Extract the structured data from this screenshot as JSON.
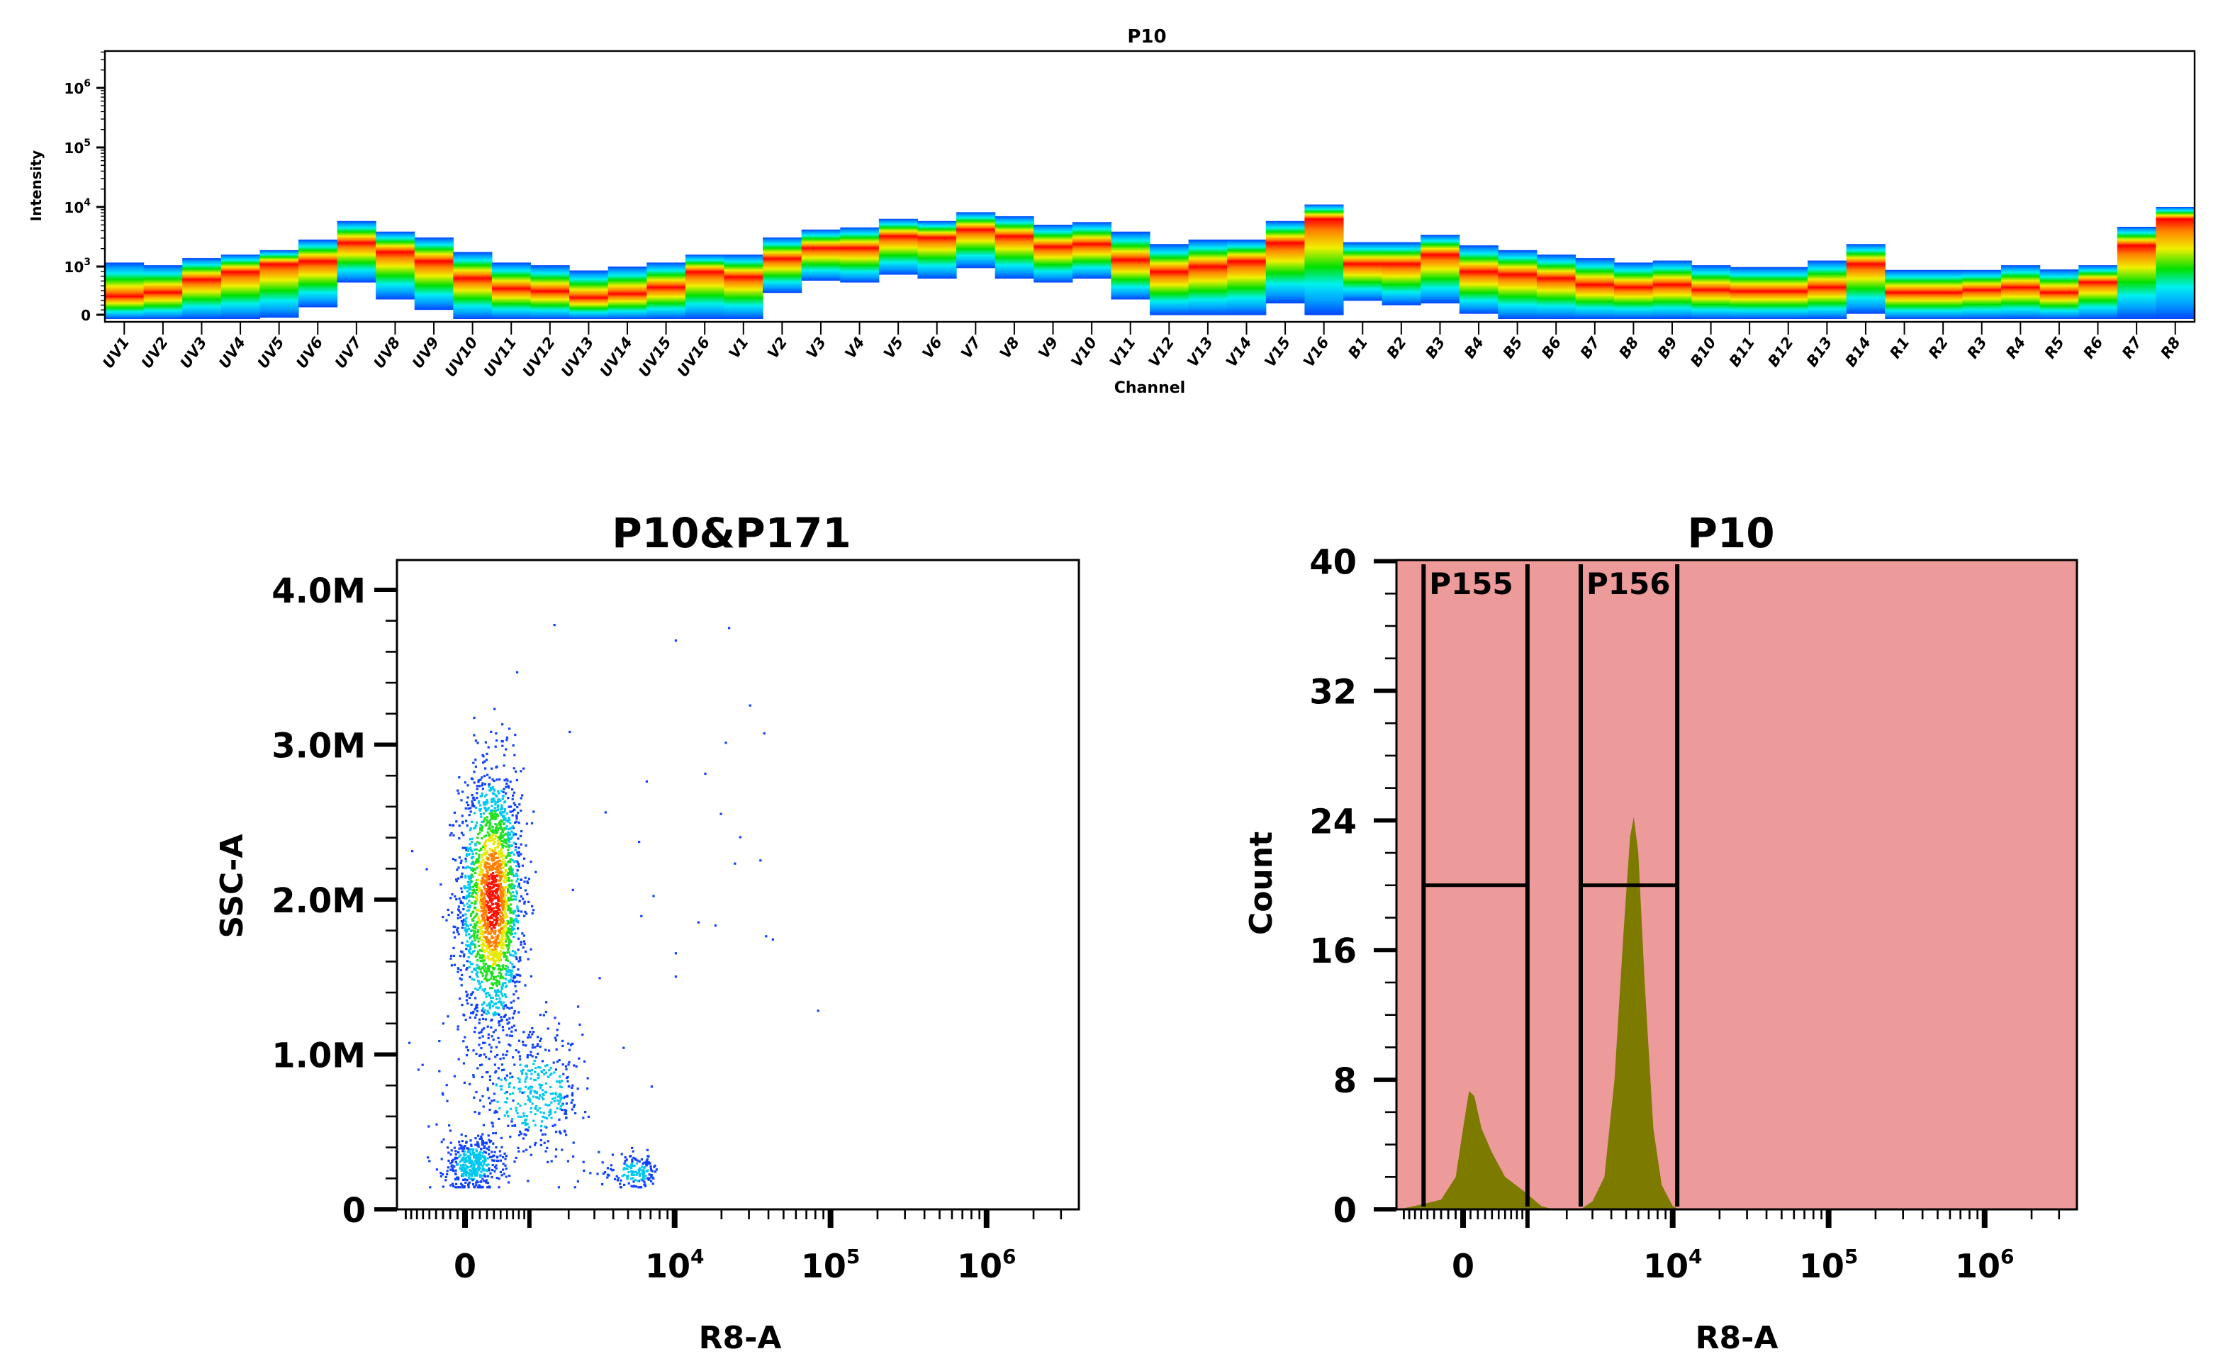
{
  "chart_data": [
    {
      "type": "heatmap",
      "title": "P10",
      "xlabel": "Channel",
      "ylabel": "Intensity",
      "y_scale": "log (biexponential near 0)",
      "ylim": [
        -150,
        4200000
      ],
      "y_ticks": [
        {
          "value": 0,
          "label": "0",
          "base": "",
          "exp": ""
        },
        {
          "value": 1000,
          "label": "",
          "base": "10",
          "exp": "3"
        },
        {
          "value": 10000,
          "label": "",
          "base": "10",
          "exp": "4"
        },
        {
          "value": 100000,
          "label": "",
          "base": "10",
          "exp": "5"
        },
        {
          "value": 1000000,
          "label": "",
          "base": "10",
          "exp": "6"
        }
      ],
      "colormap": [
        "#0044ff",
        "#00a0ff",
        "#00f0f0",
        "#00e000",
        "#f0f000",
        "#ff8000",
        "#ff0000"
      ],
      "channels": [
        {
          "name": "UV1",
          "min": 0,
          "max": 1166,
          "peak": 378
        },
        {
          "name": "UV2",
          "min": 0,
          "max": 1052,
          "peak": 460
        },
        {
          "name": "UV3",
          "min": 0,
          "max": 1387,
          "peak": 730
        },
        {
          "name": "UV4",
          "min": 0,
          "max": 1585,
          "peak": 890
        },
        {
          "name": "UV5",
          "min": 27,
          "max": 1886,
          "peak": 1108
        },
        {
          "name": "UV6",
          "min": 243,
          "max": 2839,
          "peak": 1227
        },
        {
          "name": "UV7",
          "min": 757,
          "max": 5813,
          "peak": 2510
        },
        {
          "name": "UV8",
          "min": 405,
          "max": 3860,
          "peak": 1755
        },
        {
          "name": "UV9",
          "min": 189,
          "max": 3076,
          "peak": 1227
        },
        {
          "name": "UV10",
          "min": 0,
          "max": 1756,
          "peak": 757
        },
        {
          "name": "UV11",
          "min": 0,
          "max": 1166,
          "peak": 541
        },
        {
          "name": "UV12",
          "min": 0,
          "max": 1052,
          "peak": 486
        },
        {
          "name": "UV13",
          "min": 0,
          "max": 919,
          "peak": 351
        },
        {
          "name": "UV14",
          "min": 0,
          "max": 1000,
          "peak": 432
        },
        {
          "name": "UV15",
          "min": 0,
          "max": 1166,
          "peak": 568
        },
        {
          "name": "UV16",
          "min": 0,
          "max": 1585,
          "peak": 892
        },
        {
          "name": "V1",
          "min": 0,
          "max": 1585,
          "peak": 784
        },
        {
          "name": "V2",
          "min": 541,
          "max": 3076,
          "peak": 1359
        },
        {
          "name": "V3",
          "min": 795,
          "max": 4180,
          "peak": 2047
        },
        {
          "name": "V4",
          "min": 757,
          "max": 4544,
          "peak": 2047
        },
        {
          "name": "V5",
          "min": 919,
          "max": 6321,
          "peak": 3237
        },
        {
          "name": "V6",
          "min": 838,
          "max": 5813,
          "peak": 3076
        },
        {
          "name": "V7",
          "min": 1108,
          "max": 8175,
          "peak": 4180
        },
        {
          "name": "V8",
          "min": 838,
          "max": 6988,
          "peak": 3237
        },
        {
          "name": "V9",
          "min": 757,
          "max": 5037,
          "peak": 2154
        },
        {
          "name": "V10",
          "min": 838,
          "max": 5578,
          "peak": 2388
        },
        {
          "name": "V11",
          "min": 405,
          "max": 3860,
          "peak": 1292
        },
        {
          "name": "V12",
          "min": 81,
          "max": 2388,
          "peak": 890
        },
        {
          "name": "V13",
          "min": 81,
          "max": 2839,
          "peak": 1000
        },
        {
          "name": "V14",
          "min": 81,
          "max": 2839,
          "peak": 1227
        },
        {
          "name": "V15",
          "min": 324,
          "max": 5813,
          "peak": 2510
        },
        {
          "name": "V16",
          "min": 81,
          "max": 11000,
          "peak": 6321
        },
        {
          "name": "B1",
          "min": 378,
          "max": 2565,
          "peak": 1108
        },
        {
          "name": "B2",
          "min": 286,
          "max": 2565,
          "peak": 1108
        },
        {
          "name": "B3",
          "min": 324,
          "max": 3408,
          "peak": 1585
        },
        {
          "name": "B4",
          "min": 108,
          "max": 2266,
          "peak": 892
        },
        {
          "name": "B5",
          "min": 0,
          "max": 1886,
          "peak": 838
        },
        {
          "name": "B6",
          "min": 0,
          "max": 1585,
          "peak": 757
        },
        {
          "name": "B7",
          "min": 0,
          "max": 1387,
          "peak": 622
        },
        {
          "name": "B8",
          "min": 0,
          "max": 1166,
          "peak": 568
        },
        {
          "name": "B9",
          "min": 0,
          "max": 1260,
          "peak": 622
        },
        {
          "name": "B10",
          "min": 0,
          "max": 1052,
          "peak": 514
        },
        {
          "name": "B11",
          "min": 0,
          "max": 989,
          "peak": 486
        },
        {
          "name": "B12",
          "min": 0,
          "max": 989,
          "peak": 486
        },
        {
          "name": "B13",
          "min": 0,
          "max": 1260,
          "peak": 568
        },
        {
          "name": "B14",
          "min": 108,
          "max": 2388,
          "peak": 1108
        },
        {
          "name": "R1",
          "min": 0,
          "max": 930,
          "peak": 460
        },
        {
          "name": "R2",
          "min": 0,
          "max": 930,
          "peak": 460
        },
        {
          "name": "R3",
          "min": 0,
          "max": 930,
          "peak": 514
        },
        {
          "name": "R4",
          "min": 0,
          "max": 1052,
          "peak": 568
        },
        {
          "name": "R5",
          "min": 0,
          "max": 940,
          "peak": 460
        },
        {
          "name": "R6",
          "min": 0,
          "max": 1052,
          "peak": 676
        },
        {
          "name": "R7",
          "min": 0,
          "max": 4650,
          "peak": 2266
        },
        {
          "name": "R8",
          "min": 0,
          "max": 10000,
          "peak": 6321
        }
      ]
    },
    {
      "type": "scatter",
      "title": "P10&P171",
      "xlabel": "R8-A",
      "ylabel": "SSC-A",
      "x_scale": "biexponential",
      "xlim": [
        -1070,
        3900000
      ],
      "ylim": [
        0,
        4190000
      ],
      "x_ticks": [
        {
          "value": 0,
          "label": "0",
          "base": "",
          "exp": ""
        },
        {
          "value": 10000,
          "label": "",
          "base": "10",
          "exp": "4"
        },
        {
          "value": 100000,
          "label": "",
          "base": "10",
          "exp": "5"
        },
        {
          "value": 1000000,
          "label": "",
          "base": "10",
          "exp": "6"
        }
      ],
      "y_ticks": [
        {
          "value": 0,
          "label": "0"
        },
        {
          "value": 1000000,
          "label": "1.0M"
        },
        {
          "value": 2000000,
          "label": "2.0M"
        },
        {
          "value": 3000000,
          "label": "3.0M"
        },
        {
          "value": 4000000,
          "label": "4.0M"
        }
      ],
      "populations": [
        {
          "cx": 370,
          "sx": 230,
          "cy": 2000000,
          "sy": 430000,
          "n": 2200,
          "max_density": "red"
        },
        {
          "cx": 100,
          "sx": 200,
          "cy": 300000,
          "sy": 90000,
          "n": 420,
          "max_density": "cyan"
        },
        {
          "cx": 1100,
          "sx": 650,
          "cy": 750000,
          "sy": 200000,
          "n": 420,
          "max_density": "cyan"
        },
        {
          "cx": 5500,
          "sx": 1200,
          "cy": 250000,
          "sy": 55000,
          "n": 160,
          "max_density": "cyan"
        }
      ],
      "outliers": [
        [
          10000,
          3680000
        ],
        [
          22000,
          3760000
        ],
        [
          30000,
          3260000
        ],
        [
          37000,
          3080000
        ],
        [
          21000,
          3020000
        ],
        [
          15500,
          2820000
        ],
        [
          19500,
          2560000
        ],
        [
          26000,
          2410000
        ],
        [
          24000,
          2240000
        ],
        [
          35000,
          2260000
        ],
        [
          14000,
          1860000
        ],
        [
          18000,
          1840000
        ],
        [
          38000,
          1770000
        ],
        [
          42000,
          1750000
        ],
        [
          82000,
          1290000
        ],
        [
          10000,
          1660000
        ],
        [
          10000,
          1510000
        ],
        [
          7200,
          2030000
        ],
        [
          6000,
          1900000
        ],
        [
          6500,
          2770000
        ],
        [
          5800,
          2380000
        ],
        [
          3500,
          2570000
        ],
        [
          3200,
          1500000
        ],
        [
          2100,
          2070000
        ],
        [
          2000,
          3090000
        ],
        [
          1550,
          3780000
        ],
        [
          -800,
          2320000
        ],
        [
          4600,
          1050000
        ],
        [
          7000,
          800000
        ]
      ]
    },
    {
      "type": "area",
      "title": "P10",
      "xlabel": "R8-A",
      "ylabel": "Count",
      "x_scale": "biexponential",
      "xlim": [
        -1070,
        3900000
      ],
      "ylim": [
        0,
        40
      ],
      "x_ticks": [
        {
          "value": 0,
          "label": "0",
          "base": "",
          "exp": ""
        },
        {
          "value": 10000,
          "label": "",
          "base": "10",
          "exp": "4"
        },
        {
          "value": 100000,
          "label": "",
          "base": "10",
          "exp": "5"
        },
        {
          "value": 1000000,
          "label": "",
          "base": "10",
          "exp": "6"
        }
      ],
      "y_ticks": [
        {
          "value": 0,
          "label": "0"
        },
        {
          "value": 8,
          "label": "8"
        },
        {
          "value": 16,
          "label": "16"
        },
        {
          "value": 24,
          "label": "24"
        },
        {
          "value": 32,
          "label": "32"
        },
        {
          "value": 40,
          "label": "40"
        }
      ],
      "curve": [
        [
          -1000,
          0
        ],
        [
          -600,
          0.3
        ],
        [
          -300,
          0.6
        ],
        [
          -100,
          2
        ],
        [
          0,
          5
        ],
        [
          80,
          7.3
        ],
        [
          150,
          7
        ],
        [
          250,
          5
        ],
        [
          400,
          3.5
        ],
        [
          600,
          2
        ],
        [
          900,
          1.2
        ],
        [
          1300,
          0.2
        ],
        [
          1600,
          0
        ],
        [
          2500,
          0
        ],
        [
          3000,
          0.5
        ],
        [
          3600,
          2
        ],
        [
          4200,
          8
        ],
        [
          4800,
          17
        ],
        [
          5300,
          23
        ],
        [
          5600,
          24.2
        ],
        [
          6000,
          22
        ],
        [
          6600,
          14
        ],
        [
          7500,
          5
        ],
        [
          8500,
          1.5
        ],
        [
          10000,
          0.2
        ],
        [
          11000,
          0
        ]
      ],
      "gates": [
        {
          "name": "P155",
          "x_min": -560,
          "x_max": 1000,
          "level": 20
        },
        {
          "name": "P156",
          "x_min": 2500,
          "x_max": 10700,
          "level": 20
        }
      ],
      "colors": {
        "background": "#ec9a9a",
        "fill": "#7d7a00"
      }
    }
  ]
}
